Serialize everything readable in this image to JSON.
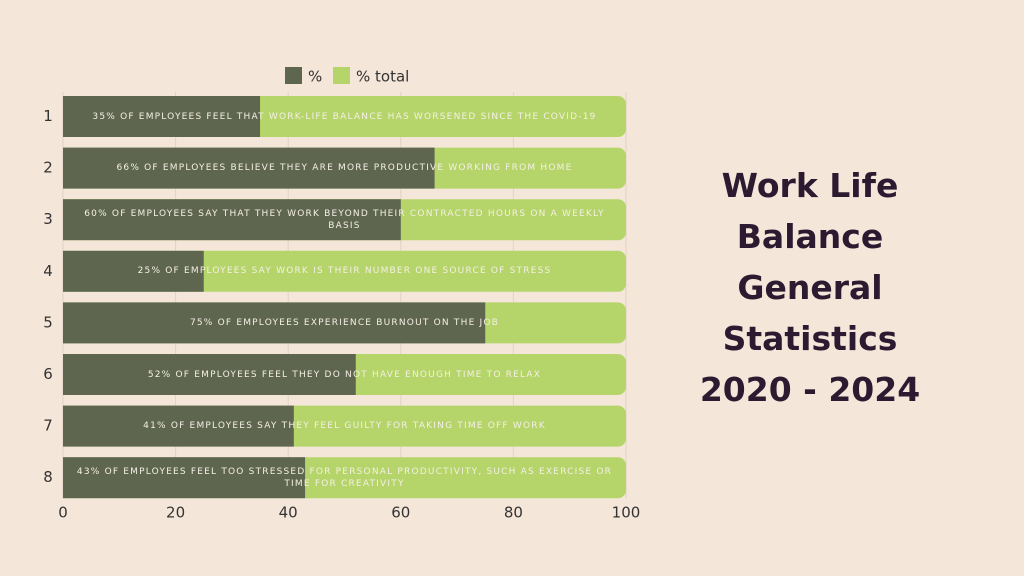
{
  "chart_data": {
    "type": "bar",
    "orientation": "horizontal",
    "overlap": true,
    "title": "Work Life Balance General Statistics 2020 - 2024",
    "categories": [
      "1",
      "2",
      "3",
      "4",
      "5",
      "6",
      "7",
      "8"
    ],
    "series": [
      {
        "name": "%",
        "color": "#5f6650",
        "values": [
          35,
          66,
          60,
          25,
          75,
          52,
          41,
          43
        ]
      },
      {
        "name": "% total",
        "color": "#b5d56a",
        "values": [
          100,
          100,
          100,
          100,
          100,
          100,
          100,
          100
        ]
      }
    ],
    "bar_labels": [
      "35% OF EMPLOYEES FEEL THAT WORK-LIFE BALANCE HAS WORSENED SINCE THE COVID-19",
      "66% OF EMPLOYEES BELIEVE THEY ARE MORE PRODUCTIVE WORKING FROM HOME",
      "60% OF EMPLOYEES SAY THAT THEY WORK BEYOND THEIR CONTRACTED HOURS ON A WEEKLY BASIS",
      "25% OF EMPLOYEES SAY WORK IS THEIR NUMBER ONE SOURCE OF STRESS",
      "75% OF EMPLOYEES EXPERIENCE BURNOUT ON THE JOB",
      "52% OF EMPLOYEES FEEL THEY DO NOT HAVE ENOUGH TIME TO RELAX",
      "41% OF EMPLOYEES SAY THEY FEEL GUILTY FOR TAKING TIME OFF WORK",
      "43% OF EMPLOYEES FEEL TOO STRESSED FOR PERSONAL PRODUCTIVITY, SUCH AS EXERCISE OR TIME FOR CREATIVITY"
    ],
    "xlim": [
      0,
      100
    ],
    "xticks": [
      0,
      20,
      40,
      60,
      80,
      100
    ],
    "grid": true,
    "legend": "top"
  }
}
